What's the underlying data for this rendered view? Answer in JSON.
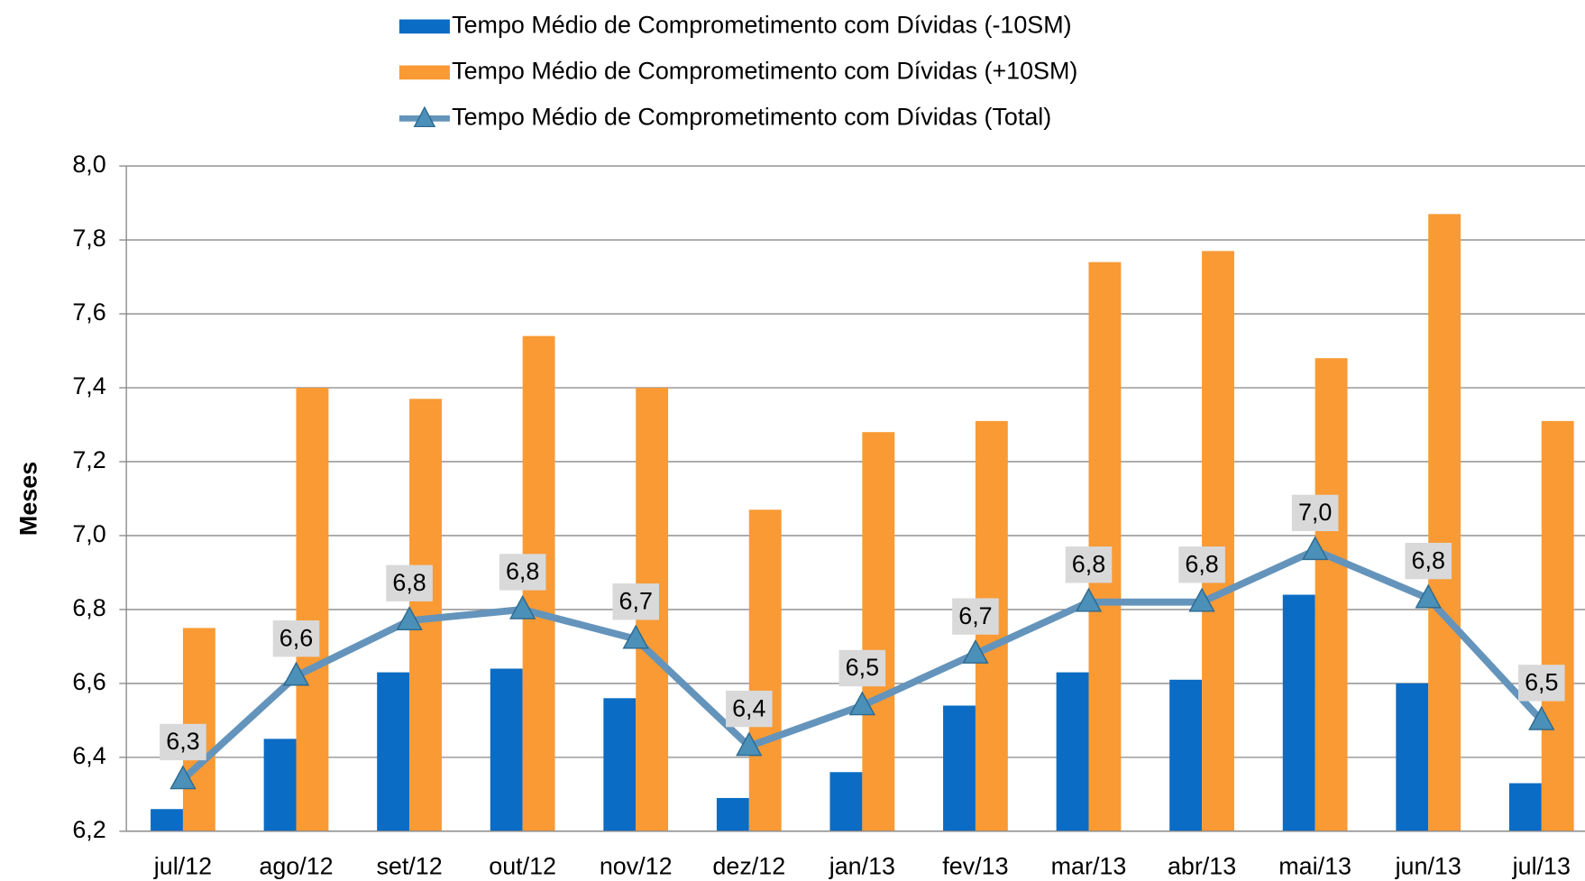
{
  "chart_data": {
    "type": "bar_line",
    "y_axis_label": "Meses",
    "categories": [
      "jul/12",
      "ago/12",
      "set/12",
      "out/12",
      "nov/12",
      "dez/12",
      "jan/13",
      "fev/13",
      "mar/13",
      "abr/13",
      "mai/13",
      "jun/13",
      "jul/13"
    ],
    "series": [
      {
        "name": "Tempo Médio de Comprometimento com Dívidas (-10SM)",
        "type": "bar",
        "color": "#0a6cc4",
        "values": [
          6.26,
          6.45,
          6.63,
          6.64,
          6.56,
          6.29,
          6.36,
          6.54,
          6.63,
          6.61,
          6.84,
          6.6,
          6.33
        ]
      },
      {
        "name": "Tempo Médio de Comprometimento com Dívidas  (+10SM)",
        "type": "bar",
        "color": "#f99a34",
        "values": [
          6.75,
          7.4,
          7.37,
          7.54,
          7.4,
          7.07,
          7.28,
          7.31,
          7.74,
          7.77,
          7.48,
          7.87,
          7.31
        ]
      },
      {
        "name": "Tempo Médio de Comprometimento com Dívidas (Total)",
        "type": "line",
        "color": "#6494bb",
        "marker_color": "#4a90b8",
        "values": [
          6.34,
          6.62,
          6.77,
          6.8,
          6.72,
          6.43,
          6.54,
          6.68,
          6.82,
          6.82,
          6.96,
          6.83,
          6.5
        ],
        "value_labels": [
          "6,3",
          "6,6",
          "6,8",
          "6,8",
          "6,7",
          "6,4",
          "6,5",
          "6,7",
          "6,8",
          "6,8",
          "7,0",
          "6,8",
          "6,5"
        ]
      }
    ],
    "ylim": [
      6.2,
      8.0
    ],
    "yticks": [
      {
        "value": 6.2,
        "label": "6,2"
      },
      {
        "value": 6.4,
        "label": "6,4"
      },
      {
        "value": 6.6,
        "label": "6,6"
      },
      {
        "value": 6.8,
        "label": "6,8"
      },
      {
        "value": 7.0,
        "label": "7,0"
      },
      {
        "value": 7.2,
        "label": "7,2"
      },
      {
        "value": 7.4,
        "label": "7,4"
      },
      {
        "value": 7.6,
        "label": "7,6"
      },
      {
        "value": 7.8,
        "label": "7,8"
      },
      {
        "value": 8.0,
        "label": "8,0"
      }
    ],
    "grid": true,
    "legend_position": "top"
  }
}
